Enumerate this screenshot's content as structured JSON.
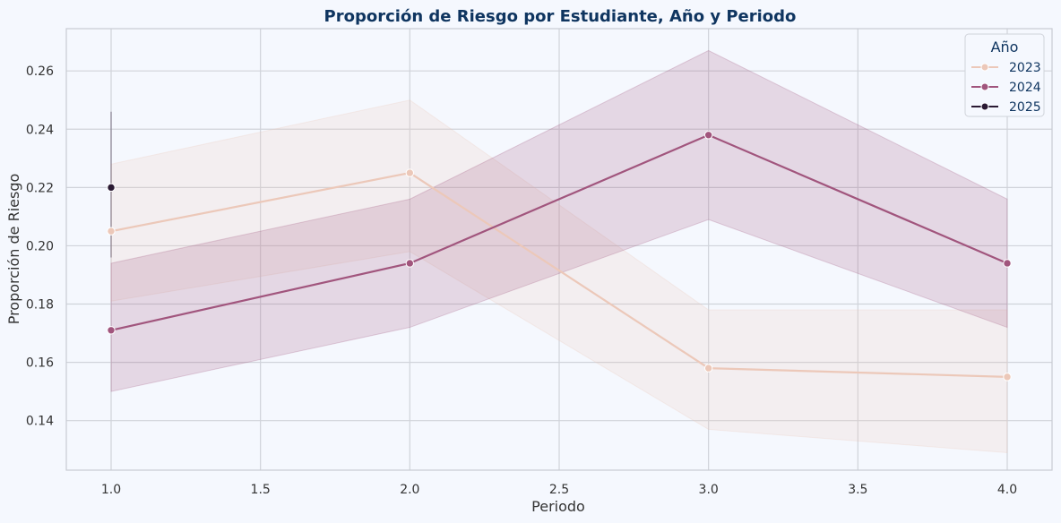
{
  "chart_data": {
    "type": "line",
    "title": "Proporción de Riesgo por Estudiante, Año y Periodo",
    "xlabel": "Periodo",
    "ylabel": "Proporción de Riesgo",
    "xlim": [
      0.85,
      4.15
    ],
    "ylim": [
      0.123,
      0.2745
    ],
    "xticks": [
      1.0,
      1.5,
      2.0,
      2.5,
      3.0,
      3.5,
      4.0
    ],
    "xtick_labels": [
      "1.0",
      "1.5",
      "2.0",
      "2.5",
      "3.0",
      "3.5",
      "4.0"
    ],
    "yticks": [
      0.14,
      0.16,
      0.18,
      0.2,
      0.22,
      0.24,
      0.26
    ],
    "ytick_labels": [
      "0.14",
      "0.16",
      "0.18",
      "0.20",
      "0.22",
      "0.24",
      "0.26"
    ],
    "grid": true,
    "legend": {
      "title": "Año",
      "position": "top-right"
    },
    "series": [
      {
        "name": "2023",
        "color": "#ecc8b9",
        "x": [
          1.0,
          2.0,
          3.0,
          4.0
        ],
        "y": [
          0.205,
          0.225,
          0.158,
          0.155
        ],
        "ci_low": [
          0.181,
          0.198,
          0.137,
          0.129
        ],
        "ci_high": [
          0.228,
          0.25,
          0.178,
          0.178
        ]
      },
      {
        "name": "2024",
        "color": "#a1557d",
        "x": [
          1.0,
          2.0,
          3.0,
          4.0
        ],
        "y": [
          0.171,
          0.194,
          0.238,
          0.194
        ],
        "ci_low": [
          0.15,
          0.172,
          0.209,
          0.172
        ],
        "ci_high": [
          0.194,
          0.216,
          0.267,
          0.216
        ]
      },
      {
        "name": "2025",
        "color": "#2a1a33",
        "x": [
          1.0
        ],
        "y": [
          0.22
        ],
        "ci_low": [
          0.196
        ],
        "ci_high": [
          0.246
        ]
      }
    ]
  },
  "colors": {
    "background": "#f5f8fe",
    "grid": "#d0d3da",
    "axes_frame": "#c8cbd2",
    "title": "#0f3560",
    "legend_text": "#0f3560"
  }
}
